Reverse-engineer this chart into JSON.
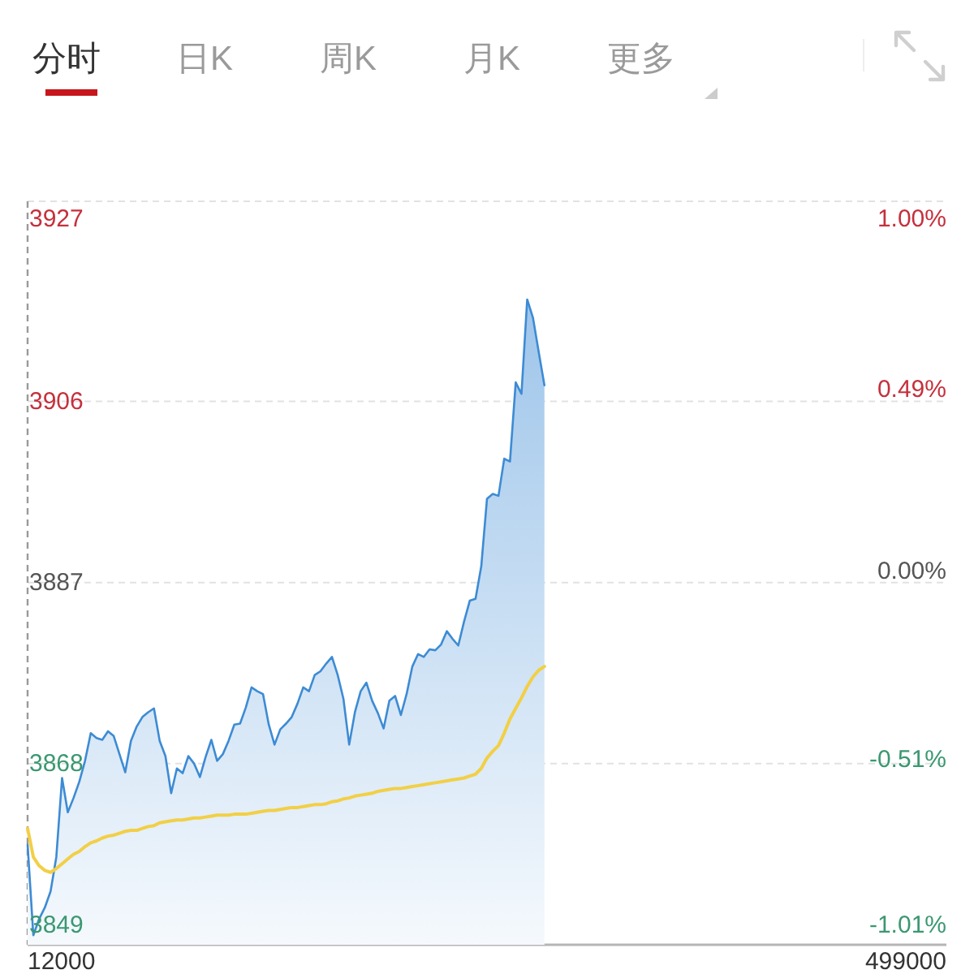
{
  "chart_data": {
    "type": "area",
    "annotations": [
      "分时",
      "日K",
      "周K",
      "月K",
      "更多",
      "12000",
      "499000"
    ],
    "categories": [
      null,
      null,
      null,
      null,
      null,
      null,
      null,
      null,
      null,
      null,
      null,
      null,
      null,
      null,
      null,
      null,
      null,
      null,
      null,
      null,
      null,
      null,
      null,
      null,
      null,
      null,
      null,
      null,
      null,
      null,
      null,
      null,
      null,
      null,
      null,
      null,
      null,
      null,
      null,
      null,
      null,
      null,
      null,
      null,
      null,
      null,
      null,
      null,
      null,
      null,
      null,
      null,
      null,
      null,
      null,
      null,
      null,
      null,
      null,
      null,
      null,
      null,
      null,
      null,
      null,
      null,
      null,
      null,
      null,
      null,
      null,
      null,
      null,
      null,
      null,
      null,
      null,
      null,
      null,
      null,
      null,
      null,
      null,
      null,
      null,
      null,
      null,
      null,
      null,
      null,
      null,
      null,
      null,
      null,
      null,
      null,
      null,
      null,
      null,
      null,
      null,
      null,
      null,
      null,
      null,
      null,
      null,
      null,
      null,
      null,
      null,
      null,
      null,
      null,
      null,
      null,
      null,
      null,
      null,
      null,
      null,
      null,
      null,
      null,
      null,
      null,
      null,
      null,
      null,
      null,
      null,
      null,
      null,
      null,
      null,
      null,
      null,
      null,
      null,
      null,
      null,
      null,
      null,
      null,
      null,
      null,
      null,
      null,
      null,
      null,
      null,
      null,
      null,
      null,
      null,
      null,
      null,
      null,
      null,
      null,
      null
    ],
    "series": [
      {
        "type": "area",
        "color": "#3d8bd4",
        "values": [
          3859.5,
          3850.0,
          3851.7,
          3852.9,
          3854.6,
          3858.2,
          3866.5,
          3862.9,
          3864.4,
          3866.1,
          3868.3,
          3871.2,
          3870.7,
          3870.5,
          3871.4,
          3870.9,
          3869.0,
          3867.1,
          3870.4,
          3871.9,
          3872.9,
          3873.4,
          3873.8,
          3870.4,
          3868.8,
          3864.9,
          3867.5,
          3867.0,
          3868.8,
          3868.0,
          3866.6,
          3868.7,
          3870.5,
          3868.3,
          3869.0,
          3870.4,
          3872.1,
          3872.2,
          3873.9,
          3876.0,
          3875.6,
          3875.3,
          3872.1,
          3870.0,
          3871.6,
          3872.2,
          3872.9,
          3874.3,
          3876.0,
          3875.6,
          3877.3,
          3877.7,
          3878.5,
          3879.2,
          3877.3,
          3874.8,
          3870.0,
          3873.4,
          3875.6,
          3876.5,
          3874.6,
          3873.3,
          3871.7,
          3874.6,
          3875.1,
          3873.1,
          3875.3,
          3878.2,
          3879.5,
          3879.2,
          3880.0,
          3879.9,
          3880.5,
          3881.9,
          3881.1,
          3880.4,
          3882.9,
          3885.1,
          3885.3,
          3888.7,
          3895.8,
          3896.3,
          3896.1,
          3900.0,
          3899.7,
          3908.0,
          3906.8,
          3916.7,
          3914.8,
          3911.2,
          3907.7,
          null,
          null,
          null,
          null,
          null,
          null,
          null,
          null,
          null,
          null,
          null,
          null,
          null,
          null,
          null,
          null,
          null,
          null,
          null,
          null,
          null,
          null,
          null,
          null,
          null,
          null,
          null,
          null,
          null,
          null,
          null,
          null,
          null,
          null,
          null,
          null,
          null,
          null,
          null,
          null,
          null,
          null,
          null,
          null,
          null,
          null,
          null,
          null,
          null,
          null,
          null,
          null,
          null,
          null,
          null,
          null,
          null,
          null,
          null,
          null,
          null,
          null,
          null,
          null,
          null,
          null,
          null,
          null,
          null,
          null
        ]
      },
      {
        "type": "line",
        "color": "#f2cf45",
        "values": [
          3861.2,
          3858.2,
          3857.3,
          3856.8,
          3856.6,
          3857.0,
          3857.5,
          3858.0,
          3858.5,
          3858.8,
          3859.3,
          3859.7,
          3859.9,
          3860.2,
          3860.4,
          3860.5,
          3860.7,
          3860.9,
          3861.0,
          3861.0,
          3861.2,
          3861.4,
          3861.5,
          3861.8,
          3861.9,
          3862.0,
          3862.1,
          3862.1,
          3862.2,
          3862.3,
          3862.3,
          3862.4,
          3862.5,
          3862.6,
          3862.6,
          3862.6,
          3862.7,
          3862.7,
          3862.7,
          3862.8,
          3862.9,
          3863.0,
          3863.1,
          3863.1,
          3863.2,
          3863.3,
          3863.4,
          3863.4,
          3863.5,
          3863.6,
          3863.7,
          3863.7,
          3863.8,
          3864.0,
          3864.1,
          3864.3,
          3864.4,
          3864.6,
          3864.7,
          3864.8,
          3864.9,
          3865.1,
          3865.2,
          3865.3,
          3865.4,
          3865.4,
          3865.5,
          3865.6,
          3865.7,
          3865.8,
          3865.9,
          3866.0,
          3866.1,
          3866.2,
          3866.3,
          3866.4,
          3866.5,
          3866.7,
          3866.9,
          3867.5,
          3868.6,
          3869.3,
          3869.9,
          3871.2,
          3872.7,
          3873.8,
          3874.9,
          3876.1,
          3877.1,
          3877.8,
          3878.2,
          null,
          null,
          null,
          null,
          null,
          null,
          null,
          null,
          null,
          null,
          null,
          null,
          null,
          null,
          null,
          null,
          null,
          null,
          null,
          null,
          null,
          null,
          null,
          null,
          null,
          null,
          null,
          null,
          null,
          null,
          null,
          null,
          null,
          null,
          null,
          null,
          null,
          null,
          null,
          null,
          null,
          null,
          null,
          null,
          null,
          null,
          null,
          null,
          null,
          null,
          null,
          null,
          null,
          null,
          null,
          null,
          null,
          null,
          null,
          null,
          null,
          null,
          null,
          null,
          null,
          null,
          null,
          null,
          null,
          null
        ]
      }
    ],
    "ylim": [
      3849,
      3927
    ],
    "yticks": [
      3849,
      3868,
      3887,
      3906,
      3927
    ],
    "y2lim": [
      -1.01,
      1.0
    ],
    "y2ticks": [
      {
        "value": -1.01,
        "label": "-1.01%"
      },
      {
        "value": -0.51,
        "label": "-0.51%"
      },
      {
        "value": 0.0,
        "label": "0.00%"
      },
      {
        "value": 0.49,
        "label": "0.49%"
      },
      {
        "value": 1.0,
        "label": "1.00%"
      }
    ],
    "grid": "y"
  }
}
